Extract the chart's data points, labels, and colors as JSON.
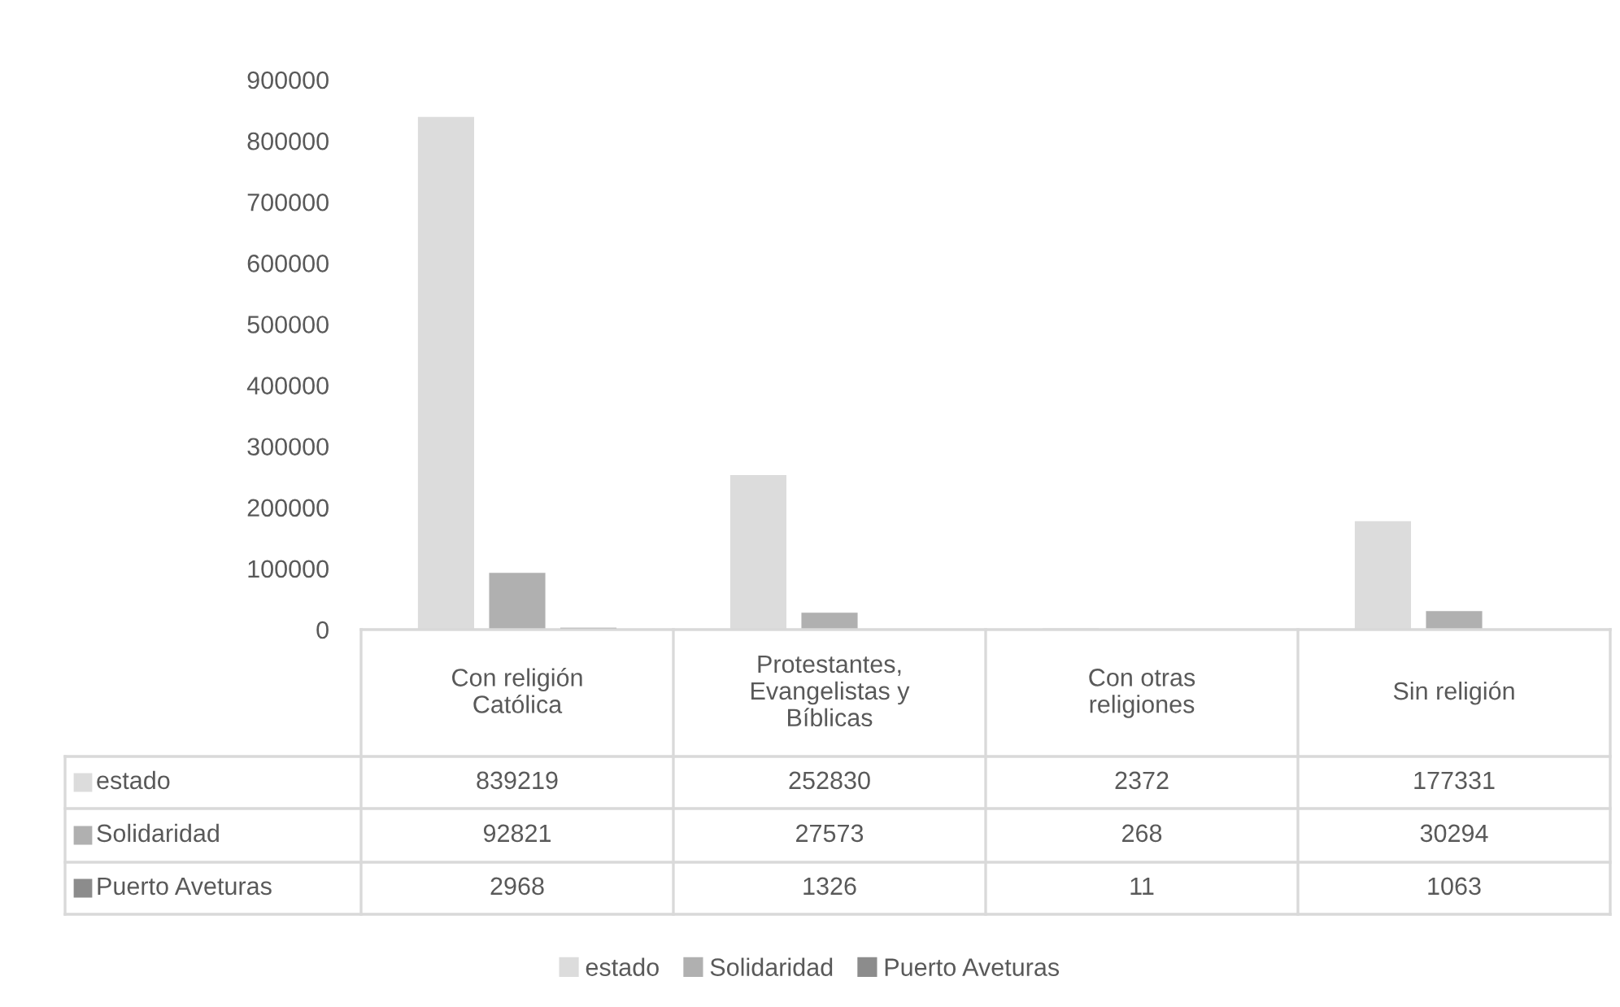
{
  "chart_data": {
    "type": "bar",
    "categories": [
      "Con religión\nCatólica",
      "Protestantes,\nEvangelistas y\nBíblicas",
      "Con otras\nreligiones",
      "Sin religión"
    ],
    "series": [
      {
        "name": "estado",
        "color": "#dcdcdc",
        "values": [
          839219,
          252830,
          2372,
          177331
        ]
      },
      {
        "name": "Solidaridad",
        "color": "#b0b0b0",
        "values": [
          92821,
          27573,
          268,
          30294
        ]
      },
      {
        "name": "Puerto Aveturas",
        "color": "#8c8c8c",
        "values": [
          2968,
          1326,
          11,
          1063
        ]
      }
    ],
    "ylim": [
      0,
      900000
    ],
    "yticks": [
      0,
      100000,
      200000,
      300000,
      400000,
      500000,
      600000,
      700000,
      800000,
      900000
    ],
    "grid": false,
    "legend": "bottom",
    "data_labels": true
  }
}
